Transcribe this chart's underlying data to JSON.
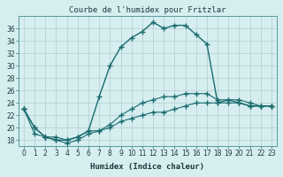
{
  "title": "Courbe de l'humidex pour Fritzlar",
  "xlabel": "Humidex (Indice chaleur)",
  "bg_color": "#d6eef0",
  "grid_color": "#b0cdd0",
  "line_color": "#1a6b6e",
  "hours": [
    0,
    1,
    2,
    3,
    4,
    5,
    6,
    7,
    8,
    9,
    10,
    11,
    12,
    13,
    14,
    15,
    16,
    17,
    18,
    19,
    20,
    21,
    22,
    23
  ],
  "humidex_main": [
    23,
    20,
    18.5,
    18,
    18,
    18.5,
    19.5,
    25,
    30,
    33,
    34.5,
    35.5,
    37,
    36,
    36.5,
    36.5,
    35,
    33.5,
    24,
    24.5,
    24,
    23.5,
    23.5,
    23.5
  ],
  "humidex_low": [
    23,
    19,
    18.5,
    18,
    17.5,
    18,
    19,
    19.5,
    20,
    21,
    21.5,
    22,
    22.5,
    22.5,
    23,
    23.5,
    24,
    24,
    24,
    24,
    24,
    23.5,
    23.5,
    23.5
  ],
  "humidex_high": [
    23,
    20,
    18.5,
    18.5,
    18,
    18.5,
    19.5,
    19.5,
    20.5,
    22,
    23,
    24,
    24.5,
    25,
    25,
    25.5,
    25.5,
    25.5,
    24.5,
    24.5,
    24.5,
    24,
    23.5,
    23.5
  ],
  "ylim": [
    17,
    38
  ],
  "yticks": [
    18,
    20,
    22,
    24,
    26,
    28,
    30,
    32,
    34,
    36
  ],
  "xlim": [
    -0.5,
    23.5
  ],
  "tick_label_color": "#1a3a3c",
  "spine_color": "#5a9a9e"
}
